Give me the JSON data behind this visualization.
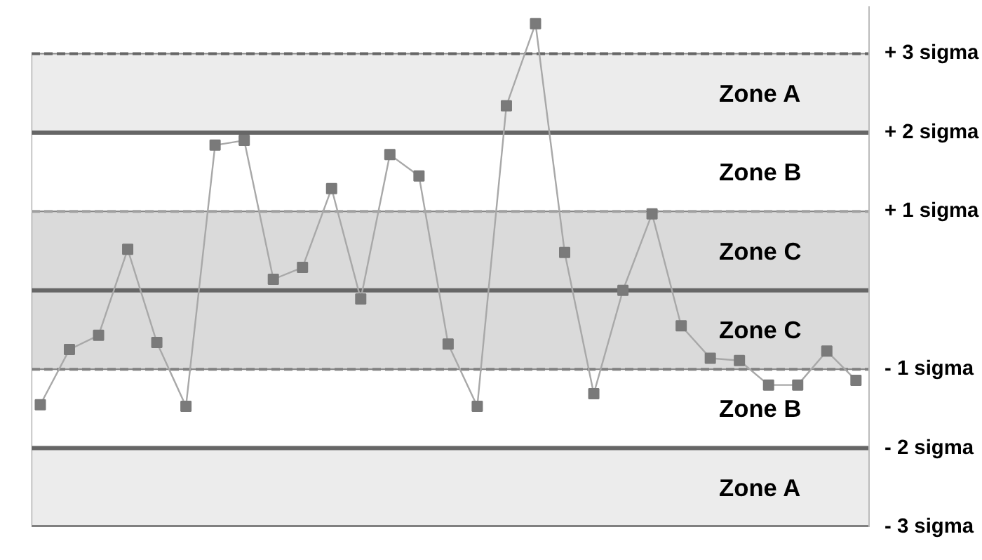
{
  "chart_data": {
    "type": "line",
    "categories": [
      null,
      null,
      null,
      null,
      null,
      null,
      null,
      null,
      null,
      null,
      null,
      null,
      null,
      null,
      null,
      null,
      null,
      null,
      null,
      null,
      null,
      null,
      null,
      null,
      null,
      null,
      null,
      null,
      null
    ],
    "series": [
      {
        "color": "#7a7a7a",
        "values": [
          -1.45,
          -0.75,
          -0.57,
          0.52,
          -0.66,
          -1.47,
          1.84,
          1.9,
          0.14,
          0.29,
          1.29,
          -0.11,
          1.72,
          1.45,
          -0.68,
          -1.47,
          2.34,
          3.38,
          0.48,
          -1.31,
          0.0,
          0.97,
          -0.45,
          -0.86,
          -0.89,
          -1.2,
          -1.2,
          -0.77,
          -1.14
        ]
      }
    ],
    "marker": "square",
    "line_style": "solid",
    "ylim": [
      -3,
      3.6
    ],
    "yticks": [
      {
        "value": 3,
        "label": "+ 3 sigma"
      },
      {
        "value": 2,
        "label": "+ 2 sigma"
      },
      {
        "value": 1,
        "label": "+ 1 sigma"
      },
      {
        "value": -1,
        "label": "- 1 sigma"
      },
      {
        "value": -2,
        "label": "- 2 sigma"
      },
      {
        "value": -3,
        "label": "- 3 sigma"
      }
    ],
    "bands": [
      {
        "axis": "y",
        "from": 2,
        "to": 3,
        "label": "Zone A",
        "color": "#ececec"
      },
      {
        "axis": "y",
        "from": 1,
        "to": 2,
        "label": "Zone B",
        "color": "#ffffff"
      },
      {
        "axis": "y",
        "from": 0,
        "to": 1,
        "label": "Zone C",
        "color": "#dadada"
      },
      {
        "axis": "y",
        "from": -1,
        "to": 0,
        "label": "Zone C",
        "color": "#dadada"
      },
      {
        "axis": "y",
        "from": -2,
        "to": -1,
        "label": "Zone B",
        "color": "#ffffff"
      },
      {
        "axis": "y",
        "from": -3,
        "to": -2,
        "label": "Zone A",
        "color": "#ececec"
      }
    ],
    "ref_lines": [
      {
        "axis": "y",
        "value": 3,
        "color": "#666666",
        "line_style": "dashed"
      },
      {
        "axis": "y",
        "value": 2,
        "color": "#666666",
        "line_style": "solid"
      },
      {
        "axis": "y",
        "value": 1,
        "color": "#a0a0a0",
        "line_style": "dashed"
      },
      {
        "axis": "y",
        "value": 0,
        "color": "#666666",
        "line_style": "solid"
      },
      {
        "axis": "y",
        "value": -1,
        "color": "#808080",
        "line_style": "dashed"
      },
      {
        "axis": "y",
        "value": -2,
        "color": "#666666",
        "line_style": "solid"
      },
      {
        "axis": "y",
        "value": -3,
        "color": "#808080",
        "line_style": "solid"
      }
    ],
    "grid": false,
    "tick_labels": "y"
  }
}
